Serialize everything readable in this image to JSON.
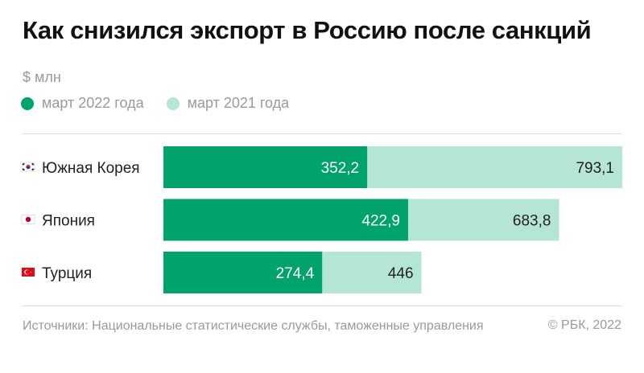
{
  "title": "Как снизился экспорт в Россию после санкций",
  "unit": "$ млн",
  "colors": {
    "primary": "#00a36c",
    "secondary": "#b5e6d3"
  },
  "chart_data": {
    "type": "bar",
    "orientation": "horizontal",
    "categories": [
      "Южная Корея",
      "Япония",
      "Турция"
    ],
    "flags": [
      "kr",
      "jp",
      "tr"
    ],
    "series": [
      {
        "name": "март 2022 года",
        "values": [
          352.2,
          422.9,
          274.4
        ],
        "labels": [
          "352,2",
          "422,9",
          "274,4"
        ]
      },
      {
        "name": "март 2021 года",
        "values": [
          793.1,
          683.8,
          446
        ],
        "labels": [
          "793,1",
          "683,8",
          "446"
        ]
      }
    ],
    "xlim": [
      0,
      793.1
    ],
    "grid": false,
    "legend": "top-left"
  },
  "footer": {
    "source": "Источники: Национальные статистические службы, таможенные управления",
    "copyright": "© РБК, 2022"
  }
}
